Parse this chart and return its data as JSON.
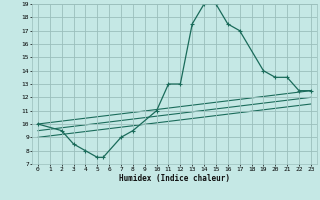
{
  "xlabel": "Humidex (Indice chaleur)",
  "background_color": "#c5e8e5",
  "grid_color": "#9bbfbc",
  "line_color": "#1a6b5a",
  "xlim": [
    -0.5,
    23.5
  ],
  "ylim": [
    7,
    19
  ],
  "xticks": [
    0,
    1,
    2,
    3,
    4,
    5,
    6,
    7,
    8,
    9,
    10,
    11,
    12,
    13,
    14,
    15,
    16,
    17,
    18,
    19,
    20,
    21,
    22,
    23
  ],
  "yticks": [
    7,
    8,
    9,
    10,
    11,
    12,
    13,
    14,
    15,
    16,
    17,
    18,
    19
  ],
  "main_curve": {
    "x": [
      0,
      2,
      3,
      4,
      5,
      5.5,
      7,
      8,
      10,
      11,
      12,
      13,
      14,
      15,
      16,
      17,
      19,
      20,
      21,
      22,
      23
    ],
    "y": [
      10,
      9.5,
      8.5,
      8,
      7.5,
      7.5,
      9,
      9.5,
      11,
      13,
      13,
      17.5,
      19,
      19,
      17.5,
      17,
      14,
      13.5,
      13.5,
      12.5,
      12.5
    ]
  },
  "straight_lines": [
    {
      "x": [
        0,
        23
      ],
      "y": [
        10,
        12.5
      ]
    },
    {
      "x": [
        0,
        23
      ],
      "y": [
        9.5,
        12.0
      ]
    },
    {
      "x": [
        0,
        23
      ],
      "y": [
        9.0,
        11.5
      ]
    }
  ]
}
